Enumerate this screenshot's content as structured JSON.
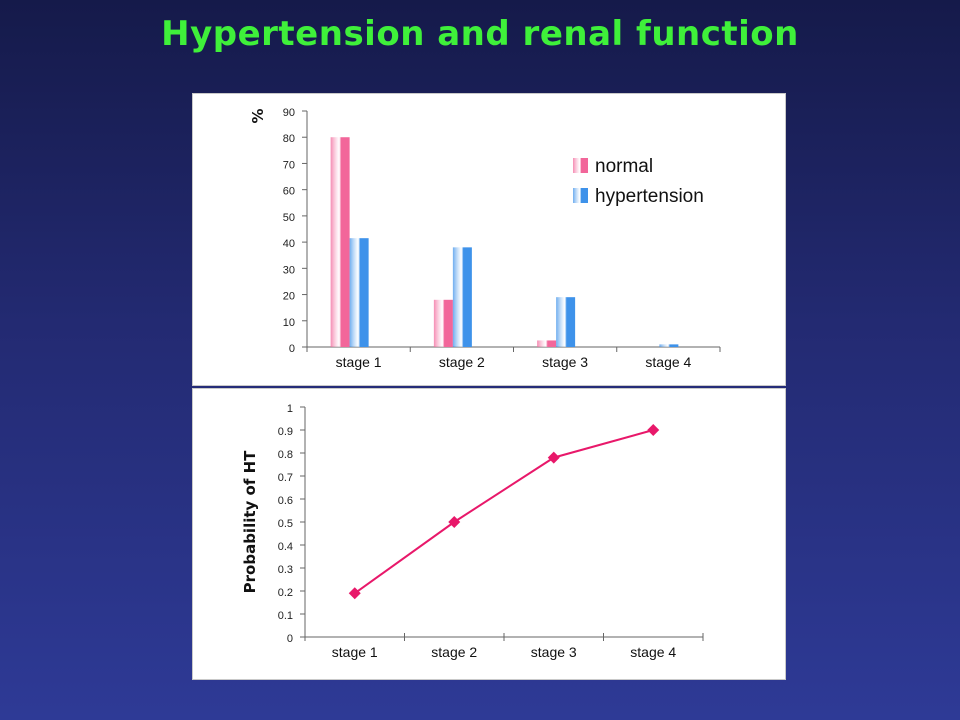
{
  "slide": {
    "title": "Hypertension and renal function"
  },
  "colors": {
    "normal": "#f2669a",
    "hypertension": "#3e92ea",
    "line": "#e8186a",
    "title": "#3ff03a"
  },
  "chart_data": [
    {
      "type": "bar",
      "categories": [
        "stage 1",
        "stage 2",
        "stage 3",
        "stage 4"
      ],
      "series": [
        {
          "name": "normal",
          "values": [
            80,
            18,
            2.5,
            0
          ]
        },
        {
          "name": "hypertension",
          "values": [
            41.5,
            38,
            19,
            1
          ]
        }
      ],
      "title": "",
      "xlabel": "",
      "ylabel": "%",
      "ylim": [
        0,
        90
      ],
      "yticks": [
        "0",
        "10",
        "20",
        "30",
        "40",
        "50",
        "60",
        "70",
        "80",
        "90"
      ],
      "legend": "top-right",
      "grid": false
    },
    {
      "type": "line",
      "categories": [
        "stage 1",
        "stage 2",
        "stage 3",
        "stage 4"
      ],
      "series": [
        {
          "values": [
            0.19,
            0.5,
            0.78,
            0.9
          ]
        }
      ],
      "title": "",
      "xlabel": "",
      "ylabel": "Probability of HT",
      "ylim": [
        0,
        1
      ],
      "yticks": [
        "0",
        "0.1",
        "0.2",
        "0.3",
        "0.4",
        "0.5",
        "0.6",
        "0.7",
        "0.8",
        "0.9",
        "1"
      ],
      "grid": false
    }
  ]
}
